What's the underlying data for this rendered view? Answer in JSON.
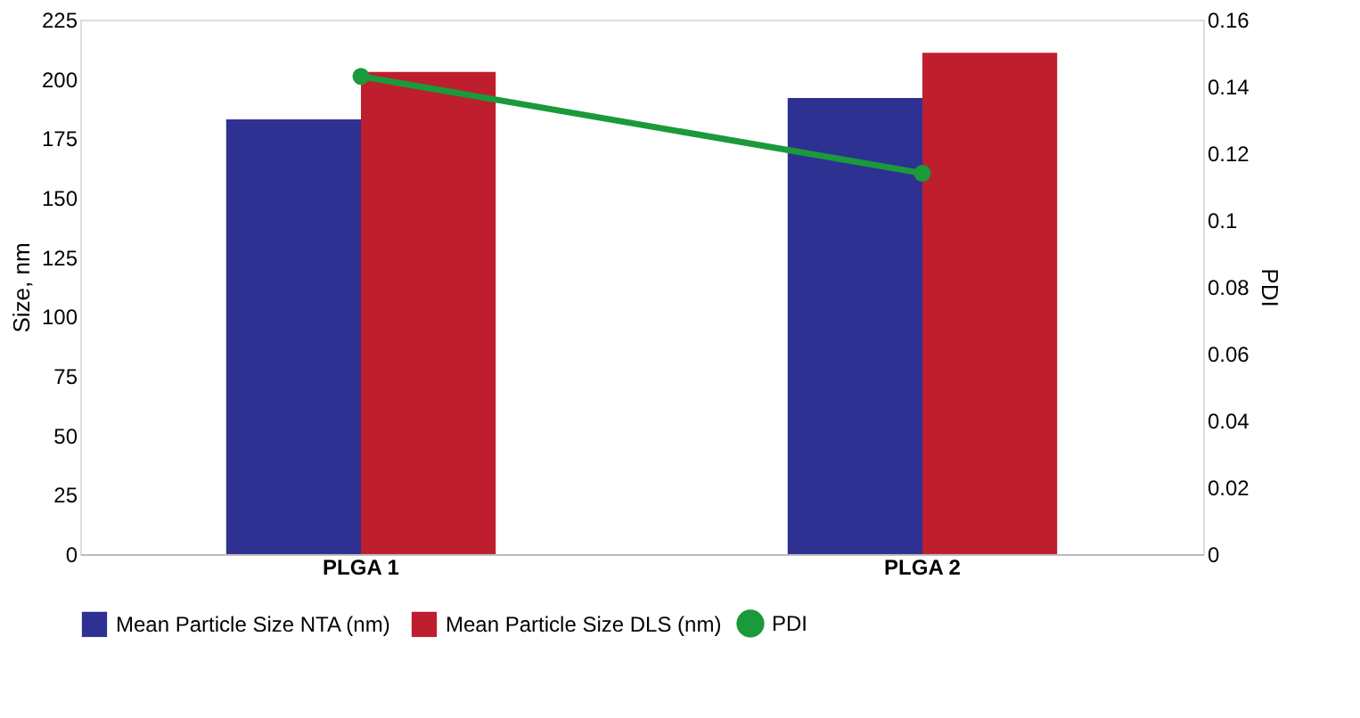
{
  "chart_data": {
    "type": "bar",
    "categories": [
      "PLGA 1",
      "PLGA 2"
    ],
    "ylabel": "Size, nm",
    "y2label": "PDI",
    "ylim": [
      0,
      225
    ],
    "yticks": [
      0,
      25,
      50,
      75,
      100,
      125,
      150,
      175,
      200,
      225
    ],
    "y2lim": [
      0,
      0.16
    ],
    "y2ticks": [
      0,
      0.02,
      0.04,
      0.06,
      0.08,
      0.1,
      0.12,
      0.14,
      0.16
    ],
    "grid": false,
    "legend": "bottom",
    "marker": "circle",
    "series": [
      {
        "name": "Mean Particle Size NTA (nm)",
        "color": "#2e3192",
        "values": [
          183,
          192
        ]
      },
      {
        "name": "Mean Particle Size DLS (nm)",
        "color": "#be1e2d",
        "values": [
          203,
          211
        ]
      },
      {
        "name": "PDI",
        "type": "line",
        "axis": "y2",
        "color": "#1a9a3a",
        "values": [
          0.143,
          0.114
        ]
      }
    ]
  }
}
